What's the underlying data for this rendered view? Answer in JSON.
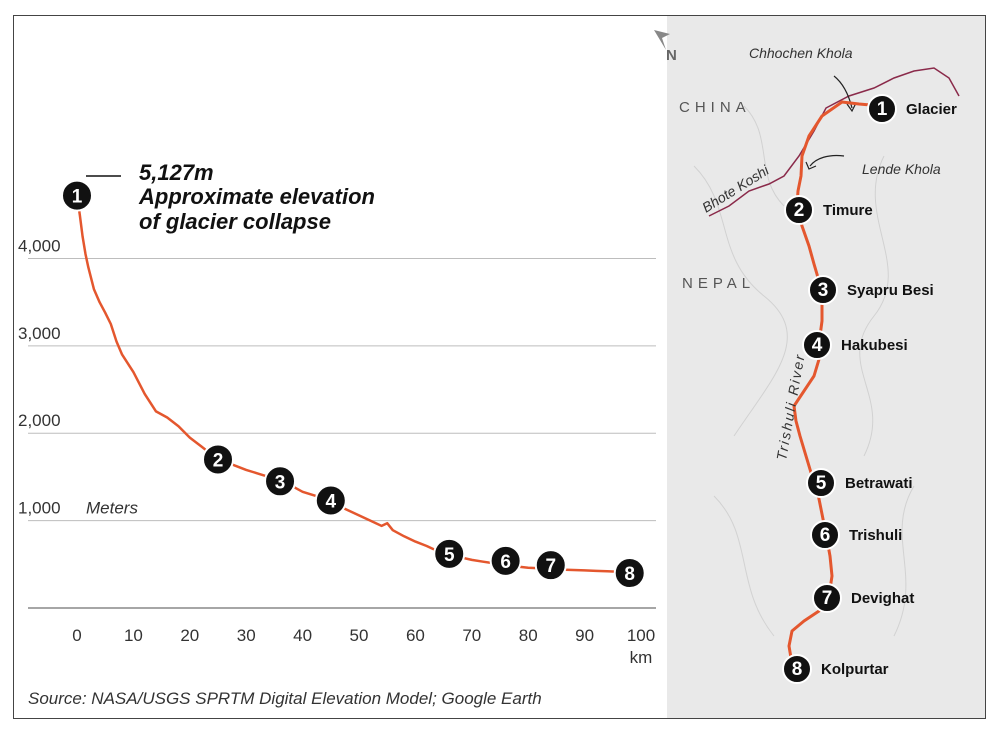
{
  "chart_data": {
    "type": "line",
    "title": "",
    "xlabel": "km",
    "ylabel": "Meters",
    "xlim": [
      0,
      100
    ],
    "ylim": [
      0,
      5127
    ],
    "grid": true,
    "x_ticks": [
      "0",
      "10",
      "20",
      "30",
      "40",
      "50",
      "60",
      "70",
      "80",
      "90",
      "100"
    ],
    "y_ticks": [
      "1,000",
      "2,000",
      "3,000",
      "4,000"
    ],
    "y_tick_values": [
      1000,
      2000,
      3000,
      4000
    ],
    "x_unit": "km",
    "y_unit": "Meters",
    "color": "#e4572e",
    "series": [
      {
        "x": [
          0,
          0.5,
          1,
          1.5,
          2,
          3,
          4,
          5,
          6,
          7,
          8,
          10,
          12,
          14,
          16,
          18,
          20,
          22,
          24,
          26,
          28,
          30,
          32,
          34,
          36,
          38,
          40,
          42,
          44,
          46,
          48,
          50,
          52,
          54,
          55,
          56,
          58,
          60,
          62,
          64,
          66,
          68,
          70,
          72,
          74,
          76,
          78,
          80,
          82,
          84,
          86,
          88,
          90,
          92,
          94,
          96,
          98,
          100
        ],
        "y": [
          4720,
          4500,
          4250,
          4050,
          3900,
          3650,
          3500,
          3380,
          3250,
          3050,
          2900,
          2700,
          2450,
          2250,
          2180,
          2080,
          1950,
          1850,
          1750,
          1690,
          1630,
          1580,
          1540,
          1500,
          1450,
          1400,
          1330,
          1290,
          1250,
          1180,
          1120,
          1060,
          1000,
          940,
          970,
          890,
          820,
          760,
          710,
          650,
          610,
          580,
          550,
          530,
          510,
          490,
          475,
          460,
          455,
          445,
          440,
          435,
          430,
          425,
          420,
          415,
          410,
          400
        ]
      }
    ],
    "markers": [
      {
        "label": "1",
        "x": 0,
        "y": 4720
      },
      {
        "label": "2",
        "x": 25,
        "y": 1700
      },
      {
        "label": "3",
        "x": 36,
        "y": 1450
      },
      {
        "label": "4",
        "x": 45,
        "y": 1230
      },
      {
        "label": "5",
        "x": 66,
        "y": 620
      },
      {
        "label": "6",
        "x": 76,
        "y": 540
      },
      {
        "label": "7",
        "x": 84,
        "y": 490
      },
      {
        "label": "8",
        "x": 98,
        "y": 400
      }
    ],
    "annotation": {
      "line1": "5,127m",
      "line2": "Approximate elevation",
      "line3": "of glacier collapse"
    }
  },
  "map": {
    "north_label": "N",
    "regions": [
      "CHINA",
      "NEPAL"
    ],
    "rivers": [
      "Chhochen Khola",
      "Lende Khola",
      "Bhote Koshi",
      "Trishuli River"
    ],
    "places": [
      {
        "num": "1",
        "name": "Glacier"
      },
      {
        "num": "2",
        "name": "Timure"
      },
      {
        "num": "3",
        "name": "Syapru Besi"
      },
      {
        "num": "4",
        "name": "Hakubesi"
      },
      {
        "num": "5",
        "name": "Betrawati"
      },
      {
        "num": "6",
        "name": "Trishuli"
      },
      {
        "num": "7",
        "name": "Devighat"
      },
      {
        "num": "8",
        "name": "Kolpurtar"
      }
    ]
  },
  "source": "Source: NASA/USGS SPRTM Digital Elevation Model; Google Earth"
}
